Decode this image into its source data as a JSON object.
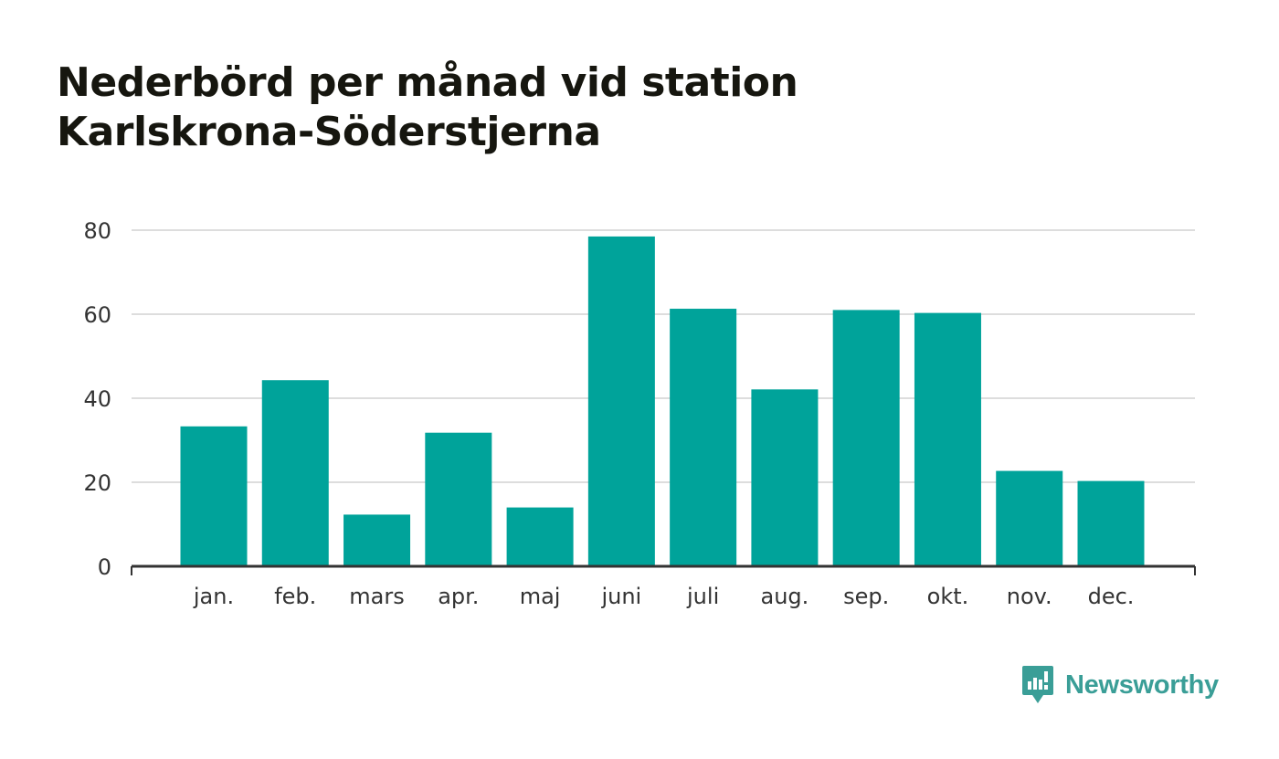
{
  "title_lines": [
    "Nederbörd per månad vid station",
    "Karlskrona-Söderstjerna"
  ],
  "chart_data": {
    "type": "bar",
    "title": "Nederbörd per månad vid station Karlskrona-Söderstjerna",
    "categories": [
      "jan.",
      "feb.",
      "mars",
      "apr.",
      "maj",
      "juni",
      "juli",
      "aug.",
      "sep.",
      "okt.",
      "nov.",
      "dec."
    ],
    "values": [
      33.3,
      44.3,
      12.3,
      31.8,
      14.0,
      78.5,
      61.3,
      42.1,
      61.0,
      60.3,
      22.7,
      20.3
    ],
    "xlabel": "",
    "ylabel": "",
    "ylim": [
      0,
      80
    ],
    "yticks": [
      0,
      20,
      40,
      60,
      80
    ],
    "grid": true,
    "legend": "none",
    "colors": {
      "bar": "#00a39a",
      "grid": "#dddddd",
      "axis": "#333333",
      "tick_label": "#333333"
    }
  },
  "brand": {
    "name": "Newsworthy",
    "icon": "newsworthy-logo-icon",
    "color": "#3a9e97"
  }
}
